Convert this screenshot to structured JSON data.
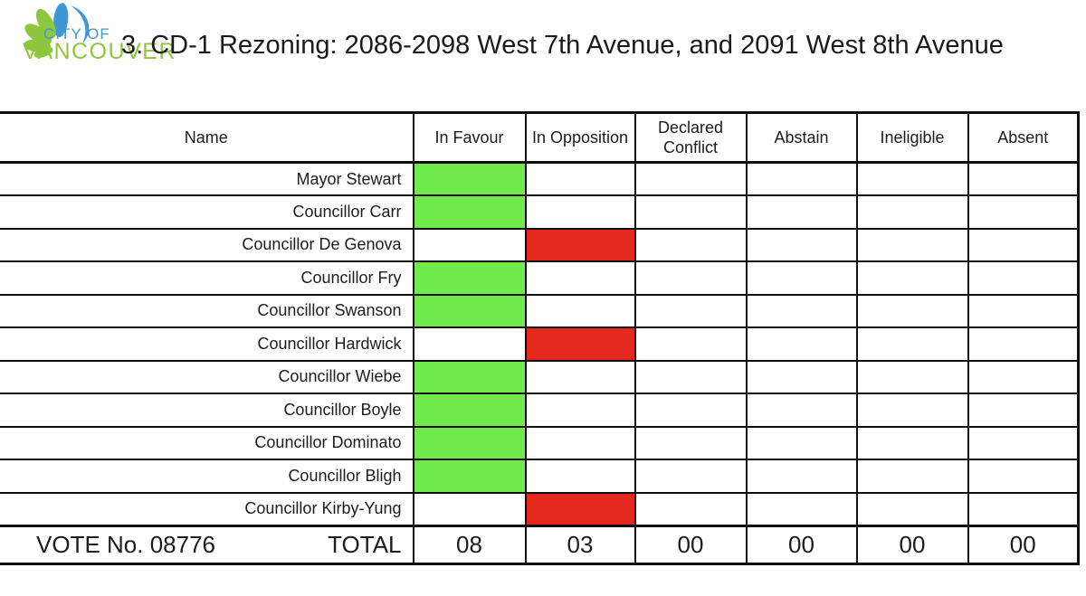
{
  "logo": {
    "city_of": "CITY OF",
    "vancouver": "VANCOUVER",
    "blue": "#4197d3",
    "green": "#8dc63f"
  },
  "title": "3. CD-1 Rezoning: 2086-2098 West 7th Avenue, and 2091 West 8th Avenue",
  "table": {
    "columns": [
      "Name",
      "In Favour",
      "In Opposition",
      "Declared Conflict",
      "Abstain",
      "Ineligible",
      "Absent"
    ],
    "vote_colors": {
      "in_favour": "#70eb4b",
      "in_opposition": "#e3291e"
    },
    "rows": [
      {
        "name": "Mayor Stewart",
        "vote": "in_favour"
      },
      {
        "name": "Councillor Carr",
        "vote": "in_favour"
      },
      {
        "name": "Councillor De Genova",
        "vote": "in_opposition"
      },
      {
        "name": "Councillor Fry",
        "vote": "in_favour"
      },
      {
        "name": "Councillor Swanson",
        "vote": "in_favour"
      },
      {
        "name": "Councillor Hardwick",
        "vote": "in_opposition"
      },
      {
        "name": "Councillor Wiebe",
        "vote": "in_favour"
      },
      {
        "name": "Councillor Boyle",
        "vote": "in_favour"
      },
      {
        "name": "Councillor Dominato",
        "vote": "in_favour"
      },
      {
        "name": "Councillor Bligh",
        "vote": "in_favour"
      },
      {
        "name": "Councillor Kirby-Yung",
        "vote": "in_opposition"
      }
    ],
    "footer": {
      "vote_no_label": "VOTE No. 08776",
      "total_label": "TOTAL",
      "totals": [
        "08",
        "03",
        "00",
        "00",
        "00",
        "00"
      ]
    }
  }
}
